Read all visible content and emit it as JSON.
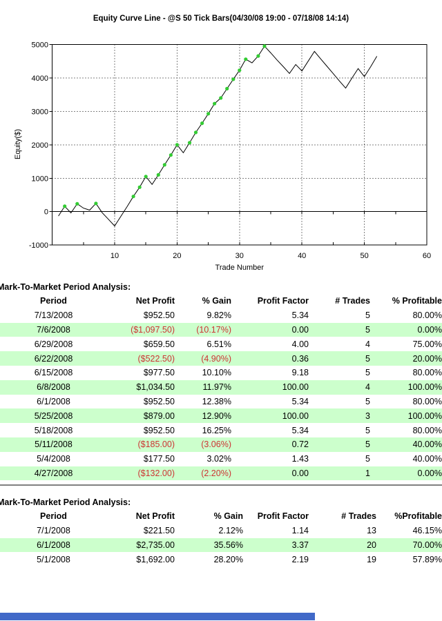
{
  "chart_data": {
    "type": "line",
    "title": "Equity Curve Line - @S 50 Tick Bars(04/30/08 19:00 - 07/18/08 14:14)",
    "xlabel": "Trade Number",
    "ylabel": "Equity($)",
    "xlim": [
      0,
      60
    ],
    "ylim": [
      -1000,
      5000
    ],
    "x_ticks": [
      10,
      20,
      30,
      40,
      50,
      60
    ],
    "minor_x_tick_step": 5,
    "y_ticks": [
      5000,
      4000,
      3000,
      2000,
      1000,
      0,
      -1000
    ],
    "grid": "dotted",
    "legend": "none",
    "series": [
      {
        "name": "Equity",
        "x": [
          1,
          2,
          3,
          4,
          5,
          6,
          7,
          8,
          9,
          10,
          11,
          12,
          13,
          14,
          15,
          16,
          17,
          18,
          19,
          20,
          21,
          22,
          23,
          24,
          25,
          26,
          27,
          28,
          29,
          30,
          31,
          32,
          33,
          34,
          35,
          36,
          37,
          38,
          39,
          40,
          41,
          42,
          43,
          44,
          45,
          46,
          47,
          48,
          49,
          50,
          51,
          52
        ],
        "values": [
          -132,
          162,
          -40,
          235,
          105,
          45.5,
          245,
          -30,
          -230,
          -430,
          -139.5,
          150,
          455,
          730,
          1050,
          813,
          1100,
          1400,
          1692,
          2000,
          1760,
          2060,
          2370,
          2644.5,
          2930,
          3230,
          3400,
          3679,
          3960,
          4230,
          4560,
          4450,
          4656.5,
          4950,
          4750,
          4540,
          4340,
          4134,
          4400,
          4210,
          4500,
          4793.5,
          4570,
          4350,
          4130,
          3910,
          3696,
          3990,
          4280,
          4040,
          4330,
          4648.5
        ]
      }
    ],
    "new_high_trades": [
      2,
      4,
      7,
      13,
      14,
      15,
      17,
      18,
      19,
      20,
      22,
      23,
      24,
      25,
      26,
      27,
      28,
      29,
      30,
      31,
      33,
      34
    ],
    "line_color": "#000000",
    "marker_color": "#33cc33",
    "final_equity": "4648.50"
  },
  "tables": [
    {
      "heading": "Mark-To-Market Period Analysis:",
      "columns": [
        "Period",
        "Net Profit",
        "% Gain",
        "Profit Factor",
        "# Trades",
        "% Profitable"
      ],
      "rows": [
        [
          "7/13/2008",
          "$952.50",
          "9.82%",
          "5.34",
          "5",
          "80.00%"
        ],
        [
          "7/6/2008",
          "($1,097.50)",
          "(10.17%)",
          "0.00",
          "5",
          "0.00%"
        ],
        [
          "6/29/2008",
          "$659.50",
          "6.51%",
          "4.00",
          "4",
          "75.00%"
        ],
        [
          "6/22/2008",
          "($522.50)",
          "(4.90%)",
          "0.36",
          "5",
          "20.00%"
        ],
        [
          "6/15/2008",
          "$977.50",
          "10.10%",
          "9.18",
          "5",
          "80.00%"
        ],
        [
          "6/8/2008",
          "$1,034.50",
          "11.97%",
          "100.00",
          "4",
          "100.00%"
        ],
        [
          "6/1/2008",
          "$952.50",
          "12.38%",
          "5.34",
          "5",
          "80.00%"
        ],
        [
          "5/25/2008",
          "$879.00",
          "12.90%",
          "100.00",
          "3",
          "100.00%"
        ],
        [
          "5/18/2008",
          "$952.50",
          "16.25%",
          "5.34",
          "5",
          "80.00%"
        ],
        [
          "5/11/2008",
          "($185.00)",
          "(3.06%)",
          "0.72",
          "5",
          "40.00%"
        ],
        [
          "5/4/2008",
          "$177.50",
          "3.02%",
          "1.43",
          "5",
          "40.00%"
        ],
        [
          "4/27/2008",
          "($132.00)",
          "(2.20%)",
          "0.00",
          "1",
          "0.00%"
        ]
      ]
    },
    {
      "heading": "Mark-To-Market Period Analysis:",
      "columns": [
        "Period",
        "Net Profit",
        "% Gain",
        "Profit Factor",
        "# Trades",
        "%Profitable"
      ],
      "rows": [
        [
          "7/1/2008",
          "$221.50",
          "2.12%",
          "1.14",
          "13",
          "46.15%"
        ],
        [
          "6/1/2008",
          "$2,735.00",
          "35.56%",
          "3.37",
          "20",
          "70.00%"
        ],
        [
          "5/1/2008",
          "$1,692.00",
          "28.20%",
          "2.19",
          "19",
          "57.89%"
        ]
      ]
    }
  ],
  "colors": {
    "row_highlight": "#ccffcc",
    "negative_text": "#cc3333",
    "separator": "#808080",
    "scrollbar_thumb": "#4169c8"
  }
}
